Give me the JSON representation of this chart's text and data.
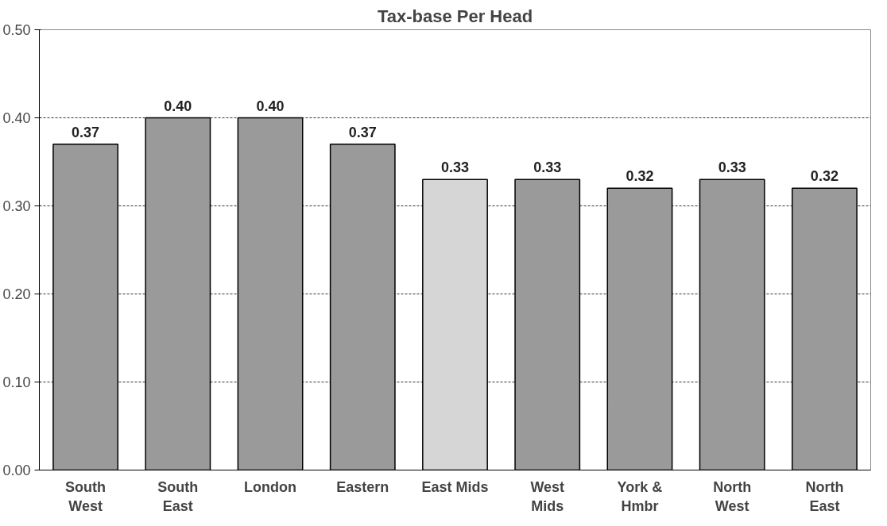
{
  "chart_data": {
    "type": "bar",
    "title": "Tax-base Per Head",
    "categories": [
      "South\nWest",
      "South\nEast",
      "London",
      "Eastern",
      "East Mids",
      "West\nMids",
      "York &\nHmbr",
      "North\nWest",
      "North\nEast"
    ],
    "values": [
      0.37,
      0.4,
      0.4,
      0.37,
      0.33,
      0.33,
      0.32,
      0.33,
      0.32
    ],
    "colors": [
      "#9a9a9a",
      "#9a9a9a",
      "#9a9a9a",
      "#9a9a9a",
      "#d6d6d6",
      "#9a9a9a",
      "#9a9a9a",
      "#9a9a9a",
      "#9a9a9a"
    ],
    "ylim": [
      0,
      0.5
    ],
    "yticks": [
      {
        "value": 0,
        "label": "0.00"
      },
      {
        "value": 0.1,
        "label": "0.10"
      },
      {
        "value": 0.2,
        "label": "0.20"
      },
      {
        "value": 0.3,
        "label": "0.30"
      },
      {
        "value": 0.4,
        "label": "0.40"
      },
      {
        "value": 0.5,
        "label": "0.50"
      }
    ],
    "value_labels": [
      "0.37",
      "0.40",
      "0.40",
      "0.37",
      "0.33",
      "0.33",
      "0.32",
      "0.33",
      "0.32"
    ],
    "grid": "y"
  }
}
